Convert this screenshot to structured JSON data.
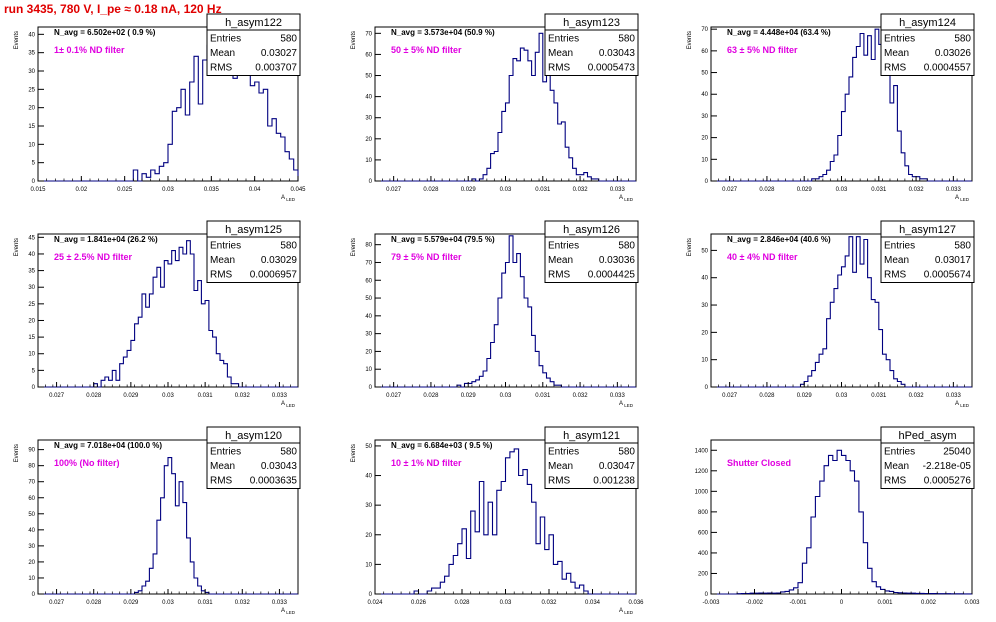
{
  "page_title": "run 3435,   780 V, I_pe ≈ 0.18 nA, 120 Hz",
  "colors": {
    "title": "#e00000",
    "annotation": "#e000e0",
    "histogram": "#000080",
    "axis": "#000000"
  },
  "chart_data": [
    {
      "type": "bar",
      "name": "h_asym122",
      "header": "N_avg = 6.502e+02 ( 0.9 %)",
      "annotation": "1± 0.1% ND filter",
      "stats": [
        [
          "Entries",
          "580"
        ],
        [
          "Mean",
          "0.03027"
        ],
        [
          "RMS",
          "0.003707"
        ]
      ],
      "ylabel": "Events",
      "xlabel": "A_LED",
      "xlim": [
        0.015,
        0.045
      ],
      "ylim": [
        0,
        42
      ],
      "xticks": [
        0.015,
        0.02,
        0.025,
        0.03,
        0.035,
        0.04,
        0.045
      ],
      "xticklabels": [
        "0.015",
        "0.02",
        "0.025",
        "0.03",
        "0.035",
        "0.04",
        "0.045"
      ],
      "yticks": [
        0,
        5,
        10,
        15,
        20,
        25,
        30,
        35,
        40
      ],
      "bins": {
        "x0": 0.015,
        "width": 0.0005,
        "counts": [
          0,
          0,
          0,
          0,
          0,
          0,
          0,
          0,
          0,
          0,
          0,
          0,
          0,
          0,
          0,
          0,
          0,
          0,
          0,
          0,
          0,
          0,
          3,
          0,
          2,
          1,
          3,
          2,
          4,
          5,
          10,
          19,
          20,
          25,
          18,
          27,
          34,
          21,
          33,
          37,
          41,
          36,
          33,
          38,
          30,
          28,
          34,
          35,
          31,
          26,
          27,
          24,
          25,
          15,
          17,
          13,
          12,
          8,
          6,
          3
        ]
      }
    },
    {
      "type": "bar",
      "name": "h_asym123",
      "header": "N_avg = 3.573e+04 (50.9 %)",
      "annotation": "50 ± 5% ND filter",
      "stats": [
        [
          "Entries",
          "580"
        ],
        [
          "Mean",
          "0.03043"
        ],
        [
          "RMS",
          "0.0005473"
        ]
      ],
      "ylabel": "Events",
      "xlabel": "A_LED",
      "xlim": [
        0.0265,
        0.0335
      ],
      "ylim": [
        0,
        73
      ],
      "xticks": [
        0.027,
        0.028,
        0.029,
        0.03,
        0.031,
        0.032,
        0.033
      ],
      "xticklabels": [
        "0.027",
        "0.028",
        "0.029",
        "0.03",
        "0.031",
        "0.032",
        "0.033"
      ],
      "yticks": [
        0,
        10,
        20,
        30,
        40,
        50,
        60,
        70
      ],
      "bins": {
        "x0": 0.0265,
        "width": 0.0001,
        "counts": [
          0,
          0,
          0,
          0,
          0,
          0,
          0,
          0,
          0,
          0,
          0,
          0,
          0,
          0,
          0,
          0,
          0,
          0,
          0,
          0,
          0,
          0,
          0,
          0,
          0,
          0,
          1,
          0,
          1,
          3,
          6,
          13,
          14,
          23,
          33,
          37,
          50,
          58,
          57,
          63,
          62,
          57,
          50,
          61,
          70,
          47,
          70,
          43,
          37,
          27,
          28,
          16,
          11,
          6,
          3,
          3,
          4,
          2,
          1,
          1,
          0,
          0,
          0,
          0,
          0,
          0,
          0,
          0,
          0,
          0
        ]
      }
    },
    {
      "type": "bar",
      "name": "h_asym124",
      "header": "N_avg = 4.448e+04 (63.4 %)",
      "annotation": "63 ± 5% ND filter",
      "stats": [
        [
          "Entries",
          "580"
        ],
        [
          "Mean",
          "0.03026"
        ],
        [
          "RMS",
          "0.0004557"
        ]
      ],
      "ylabel": "Events",
      "xlabel": "A_LED",
      "xlim": [
        0.0265,
        0.0335
      ],
      "ylim": [
        0,
        71
      ],
      "xticks": [
        0.027,
        0.028,
        0.029,
        0.03,
        0.031,
        0.032,
        0.033
      ],
      "xticklabels": [
        "0.027",
        "0.028",
        "0.029",
        "0.03",
        "0.031",
        "0.032",
        "0.033"
      ],
      "yticks": [
        0,
        10,
        20,
        30,
        40,
        50,
        60,
        70
      ],
      "bins": {
        "x0": 0.0265,
        "width": 0.0001,
        "counts": [
          0,
          0,
          0,
          0,
          0,
          0,
          0,
          0,
          0,
          0,
          0,
          0,
          0,
          0,
          0,
          0,
          0,
          0,
          0,
          0,
          0,
          0,
          0,
          0,
          0,
          0,
          0,
          1,
          1,
          2,
          3,
          5,
          9,
          12,
          21,
          32,
          40,
          48,
          57,
          62,
          68,
          58,
          67,
          56,
          70,
          63,
          49,
          58,
          36,
          44,
          23,
          13,
          7,
          3,
          2,
          2,
          1,
          1,
          0,
          0,
          0,
          0,
          0,
          0,
          0,
          0,
          0,
          0,
          0,
          0
        ]
      }
    },
    {
      "type": "bar",
      "name": "h_asym125",
      "header": "N_avg = 1.841e+04 (26.2 %)",
      "annotation": "25 ± 2.5% ND filter",
      "stats": [
        [
          "Entries",
          "580"
        ],
        [
          "Mean",
          "0.03029"
        ],
        [
          "RMS",
          "0.0006957"
        ]
      ],
      "ylabel": "Events",
      "xlabel": "A_LED",
      "xlim": [
        0.0265,
        0.0335
      ],
      "ylim": [
        0,
        46
      ],
      "xticks": [
        0.027,
        0.028,
        0.029,
        0.03,
        0.031,
        0.032,
        0.033
      ],
      "xticklabels": [
        "0.027",
        "0.028",
        "0.029",
        "0.03",
        "0.031",
        "0.032",
        "0.033"
      ],
      "yticks": [
        0,
        5,
        10,
        15,
        20,
        25,
        30,
        35,
        40,
        45
      ],
      "bins": {
        "x0": 0.0265,
        "width": 0.0001,
        "counts": [
          0,
          0,
          0,
          0,
          0,
          0,
          0,
          0,
          0,
          0,
          0,
          0,
          0,
          0,
          0,
          1,
          0,
          2,
          3,
          2,
          5,
          2,
          7,
          9,
          11,
          14,
          19,
          21,
          28,
          24,
          28,
          33,
          36,
          30,
          38,
          37,
          41,
          38,
          42,
          40,
          44,
          40,
          29,
          32,
          25,
          26,
          17,
          15,
          10,
          8,
          7,
          3,
          1,
          1,
          0,
          0,
          0,
          0,
          0,
          0,
          0,
          0,
          0,
          0,
          0,
          0,
          0,
          0,
          0,
          0
        ]
      }
    },
    {
      "type": "bar",
      "name": "h_asym126",
      "header": "N_avg = 5.579e+04 (79.5 %)",
      "annotation": "79 ± 5% ND filter",
      "stats": [
        [
          "Entries",
          "580"
        ],
        [
          "Mean",
          "0.03036"
        ],
        [
          "RMS",
          "0.0004425"
        ]
      ],
      "ylabel": "Events",
      "xlabel": "A_LED",
      "xlim": [
        0.0265,
        0.0335
      ],
      "ylim": [
        0,
        86
      ],
      "xticks": [
        0.027,
        0.028,
        0.029,
        0.03,
        0.031,
        0.032,
        0.033
      ],
      "xticklabels": [
        "0.027",
        "0.028",
        "0.029",
        "0.03",
        "0.031",
        "0.032",
        "0.033"
      ],
      "yticks": [
        0,
        10,
        20,
        30,
        40,
        50,
        60,
        70,
        80
      ],
      "bins": {
        "x0": 0.0265,
        "width": 0.0001,
        "counts": [
          0,
          0,
          0,
          0,
          0,
          0,
          0,
          0,
          0,
          0,
          0,
          0,
          0,
          0,
          0,
          0,
          0,
          0,
          0,
          0,
          0,
          0,
          1,
          0,
          2,
          2,
          3,
          4,
          6,
          9,
          16,
          25,
          35,
          50,
          64,
          70,
          85,
          70,
          75,
          62,
          50,
          45,
          29,
          20,
          12,
          8,
          5,
          3,
          1,
          1,
          0,
          0,
          0,
          0,
          0,
          0,
          0,
          0,
          0,
          0,
          0,
          0,
          0,
          0,
          0,
          0,
          0,
          0,
          0,
          0
        ]
      }
    },
    {
      "type": "bar",
      "name": "h_asym127",
      "header": "N_avg = 2.846e+04 (40.6 %)",
      "annotation": "40 ± 4% ND filter",
      "stats": [
        [
          "Entries",
          "580"
        ],
        [
          "Mean",
          "0.03017"
        ],
        [
          "RMS",
          "0.0005674"
        ]
      ],
      "ylabel": "Events",
      "xlabel": "A_LED",
      "xlim": [
        0.0265,
        0.0335
      ],
      "ylim": [
        0,
        56
      ],
      "xticks": [
        0.027,
        0.028,
        0.029,
        0.03,
        0.031,
        0.032,
        0.033
      ],
      "xticklabels": [
        "0.027",
        "0.028",
        "0.029",
        "0.03",
        "0.031",
        "0.032",
        "0.033"
      ],
      "yticks": [
        0,
        10,
        20,
        30,
        40,
        50
      ],
      "bins": {
        "x0": 0.0265,
        "width": 0.0001,
        "counts": [
          0,
          0,
          0,
          0,
          0,
          0,
          0,
          0,
          0,
          0,
          0,
          0,
          0,
          0,
          0,
          0,
          0,
          0,
          0,
          0,
          0,
          0,
          0,
          0,
          1,
          2,
          4,
          6,
          9,
          12,
          14,
          25,
          31,
          36,
          41,
          44,
          48,
          55,
          42,
          55,
          45,
          54,
          40,
          32,
          31,
          21,
          12,
          10,
          6,
          3,
          2,
          1,
          0,
          0,
          0,
          0,
          0,
          0,
          0,
          0,
          0,
          0,
          0,
          0,
          0,
          0,
          0,
          0,
          0,
          0
        ]
      }
    },
    {
      "type": "bar",
      "name": "h_asym120",
      "header": "N_avg = 7.018e+04 (100.0 %)",
      "annotation": "100% (No filter)",
      "stats": [
        [
          "Entries",
          "580"
        ],
        [
          "Mean",
          "0.03043"
        ],
        [
          "RMS",
          "0.0003635"
        ]
      ],
      "ylabel": "Events",
      "xlabel": "A_LED",
      "xlim": [
        0.0265,
        0.0335
      ],
      "ylim": [
        0,
        96
      ],
      "xticks": [
        0.027,
        0.028,
        0.029,
        0.03,
        0.031,
        0.032,
        0.033
      ],
      "xticklabels": [
        "0.027",
        "0.028",
        "0.029",
        "0.03",
        "0.031",
        "0.032",
        "0.033"
      ],
      "yticks": [
        0,
        10,
        20,
        30,
        40,
        50,
        60,
        70,
        80,
        90
      ],
      "bins": {
        "x0": 0.0265,
        "width": 0.0001,
        "counts": [
          0,
          0,
          0,
          0,
          0,
          0,
          0,
          0,
          0,
          0,
          0,
          0,
          0,
          0,
          0,
          0,
          0,
          0,
          0,
          0,
          0,
          0,
          0,
          0,
          0,
          0,
          1,
          2,
          5,
          8,
          16,
          25,
          46,
          60,
          80,
          85,
          75,
          55,
          70,
          57,
          35,
          20,
          10,
          5,
          2,
          1,
          0,
          0,
          0,
          0,
          0,
          0,
          0,
          0,
          0,
          0,
          0,
          0,
          0,
          0,
          0,
          0,
          0,
          0,
          0,
          0,
          0,
          0,
          0,
          0
        ]
      }
    },
    {
      "type": "bar",
      "name": "h_asym121",
      "header": "N_avg = 6.684e+03 ( 9.5 %)",
      "annotation": "10 ± 1% ND filter",
      "stats": [
        [
          "Entries",
          "580"
        ],
        [
          "Mean",
          "0.03047"
        ],
        [
          "RMS",
          "0.001238"
        ]
      ],
      "ylabel": "Events",
      "xlabel": "A_LED",
      "xlim": [
        0.024,
        0.036
      ],
      "ylim": [
        0,
        52
      ],
      "xticks": [
        0.024,
        0.026,
        0.028,
        0.03,
        0.032,
        0.034,
        0.036
      ],
      "xticklabels": [
        "0.024",
        "0.026",
        "0.028",
        "0.03",
        "0.032",
        "0.034",
        "0.036"
      ],
      "yticks": [
        0,
        10,
        20,
        30,
        40,
        50
      ],
      "bins": {
        "x0": 0.024,
        "width": 0.0002,
        "counts": [
          0,
          0,
          0,
          0,
          0,
          0,
          0,
          0,
          0,
          1,
          0,
          0,
          1,
          2,
          2,
          4,
          6,
          10,
          13,
          17,
          22,
          12,
          28,
          21,
          38,
          20,
          31,
          20,
          35,
          38,
          46,
          48,
          49,
          40,
          42,
          37,
          31,
          17,
          26,
          15,
          20,
          10,
          11,
          5,
          7,
          4,
          2,
          3,
          1,
          0,
          0,
          0,
          0,
          0,
          0,
          0,
          0,
          0,
          0,
          0
        ]
      }
    },
    {
      "type": "bar",
      "name": "hPed_asym",
      "header": "",
      "annotation": "Shutter Closed",
      "stats": [
        [
          "Entries",
          "25040"
        ],
        [
          "Mean",
          "-2.218e-05"
        ],
        [
          "RMS",
          "0.0005276"
        ]
      ],
      "ylabel": "",
      "xlabel": "",
      "xlim": [
        -0.003,
        0.003
      ],
      "ylim": [
        0,
        1500
      ],
      "xticks": [
        -0.003,
        -0.002,
        -0.001,
        0,
        0.001,
        0.002,
        0.003
      ],
      "xticklabels": [
        "-0.003",
        "-0.002",
        "-0.001",
        "0",
        "0.001",
        "0.002",
        "0.003"
      ],
      "yticks": [
        0,
        200,
        400,
        600,
        800,
        1000,
        1200,
        1400
      ],
      "bins": {
        "x0": -0.003,
        "width": 0.0001,
        "counts": [
          0,
          0,
          0,
          0,
          0,
          0,
          3,
          5,
          5,
          8,
          8,
          10,
          8,
          10,
          8,
          10,
          20,
          25,
          40,
          60,
          110,
          300,
          450,
          750,
          950,
          1100,
          1250,
          1350,
          1300,
          1400,
          1350,
          1300,
          1200,
          1100,
          800,
          500,
          250,
          120,
          70,
          45,
          30,
          25,
          15,
          12,
          10,
          8,
          8,
          6,
          6,
          5,
          4,
          4,
          3,
          3,
          3,
          2,
          2,
          2,
          1,
          1
        ]
      }
    }
  ]
}
